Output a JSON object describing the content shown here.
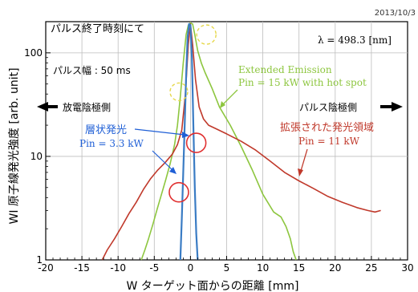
{
  "date": "2013/10/3",
  "chart_data": {
    "type": "line",
    "title": "パルス終了時刻にて",
    "xlabel": "W ターゲット面からの距離 [mm]",
    "ylabel": "WI 原子線発光強度 [arb. unit]",
    "xlim": [
      -20,
      30
    ],
    "ylim": [
      1,
      200
    ],
    "yscale": "log",
    "grid": true,
    "x_ticks": [
      "-20",
      "-15",
      "-10",
      "-5",
      "0",
      "5",
      "10",
      "15",
      "20",
      "25",
      "30"
    ],
    "y_ticks": [
      "1",
      "10",
      "100"
    ],
    "series": [
      {
        "name": "Extended Emission Pin = 15 kW with hot spot",
        "color": "#8dc63f",
        "x": [
          -6.8,
          -6.3,
          -5.8,
          -5.2,
          -4.6,
          -4.0,
          -3.4,
          -2.8,
          -2.2,
          -1.8,
          -1.4,
          -1.0,
          -0.6,
          -0.3,
          0.0,
          0.3,
          0.6,
          1.0,
          1.5,
          2.0,
          3.0,
          4.0,
          5.5,
          7.0,
          8.5,
          10.0,
          11.5,
          12.5,
          13.2,
          13.8,
          14.2,
          14.6
        ],
        "y": [
          1,
          1.25,
          1.6,
          2.2,
          3.1,
          4.3,
          6.0,
          8.5,
          13,
          20,
          38,
          80,
          150,
          185,
          195,
          190,
          150,
          105,
          80,
          65,
          45,
          30,
          20,
          12.5,
          7.5,
          4.3,
          2.9,
          2.6,
          2.1,
          1.6,
          1.2,
          1
        ]
      },
      {
        "name": "拡張された発光領域 Pin = 11 kW",
        "color": "#c0392b",
        "x": [
          -12.2,
          -11.5,
          -10.5,
          -9.5,
          -8.5,
          -7.5,
          -6.5,
          -5.5,
          -4.5,
          -3.5,
          -2.5,
          -1.8,
          -1.2,
          -0.7,
          -0.3,
          0.0,
          0.3,
          0.7,
          1.2,
          1.8,
          2.5,
          3.5,
          5.0,
          7.0,
          9.0,
          11.0,
          13.0,
          15.0,
          17.0,
          19.0,
          21.0,
          23.0,
          24.5,
          25.5,
          26.3
        ],
        "y": [
          1,
          1.25,
          1.6,
          2.1,
          2.8,
          3.6,
          4.8,
          6.1,
          7.4,
          8.7,
          10.5,
          13,
          18,
          40,
          120,
          190,
          120,
          55,
          30,
          23,
          20,
          18.5,
          16.5,
          14,
          11.5,
          9.0,
          7.0,
          5.8,
          4.9,
          4.1,
          3.6,
          3.2,
          3.0,
          2.9,
          3.0
        ]
      },
      {
        "name": "層状発光 Pin = 3.3 kW",
        "color": "#3a7cc4",
        "x": [
          -1.4,
          -1.2,
          -1.0,
          -0.8,
          -0.6,
          -0.4,
          -0.2,
          0.0,
          0.2,
          0.4,
          0.6,
          0.8,
          1.0
        ],
        "y": [
          1,
          2.5,
          7,
          20,
          60,
          140,
          190,
          185,
          90,
          20,
          5,
          1.8,
          1
        ]
      }
    ],
    "annotations": {
      "pulse_width": "パルス幅 : 50 ms",
      "wavelength": "λ = 498.3 [nm]",
      "left_side": "放電陰極側",
      "right_side": "パルス陰極側",
      "extended_emission": "Extended Emission",
      "extended_pin": "Pin = 15 kW with hot spot",
      "expanded_region": "拡張された発光領域",
      "expanded_pin": "Pin = 11 kW",
      "laminar": "層状発光",
      "laminar_pin": "Pin = 3.3 kW"
    }
  }
}
